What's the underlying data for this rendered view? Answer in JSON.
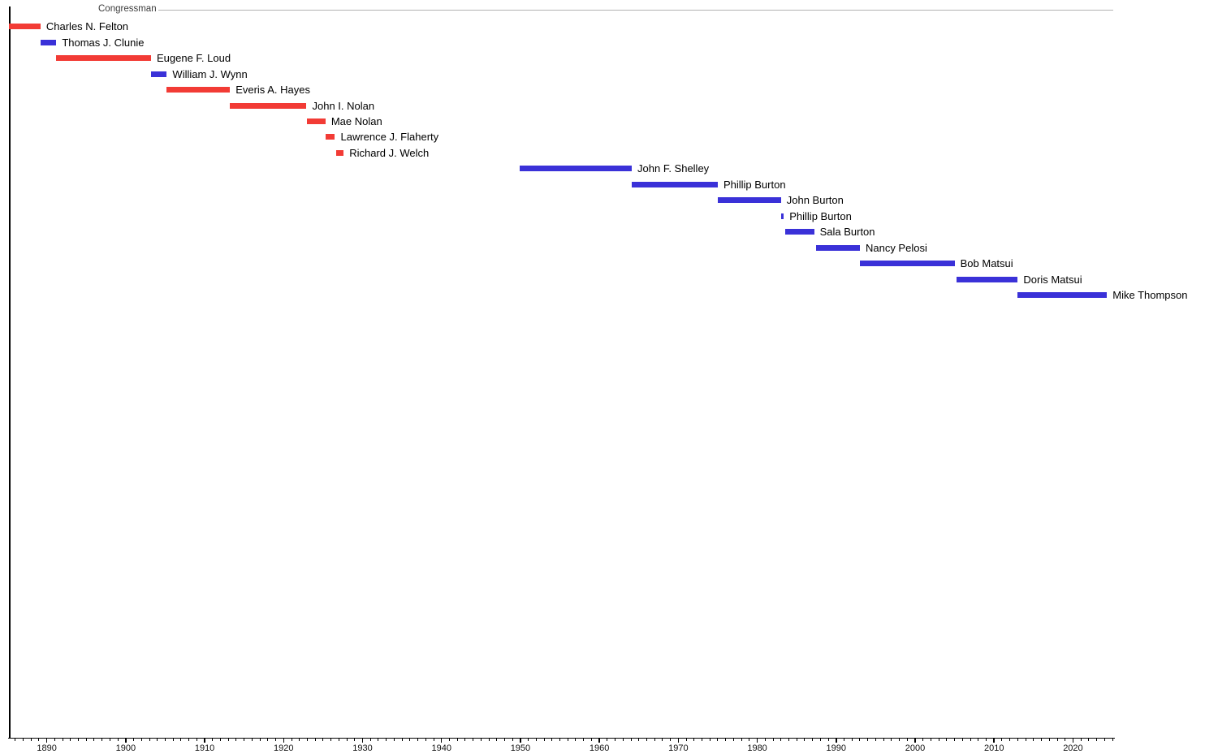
{
  "header": {
    "label": "Congressman"
  },
  "colors": {
    "republican": "#f23b35",
    "democrat": "#3a31d8",
    "axis": "#000000",
    "header_line": "#b3b3b3",
    "header_text": "#3c3c3c",
    "label_text": "#000000"
  },
  "chart_data": {
    "type": "gantt",
    "title": "Congressman",
    "xlabel": "",
    "ylabel": "",
    "grid": false,
    "legend_position": "none",
    "x_axis": {
      "min": 1885.2,
      "max": 2025.2,
      "major_ticks": [
        1890,
        1900,
        1910,
        1920,
        1930,
        1940,
        1950,
        1960,
        1970,
        1980,
        1990,
        2000,
        2010,
        2020
      ],
      "minor_tick_interval_years": 1
    },
    "series": [
      {
        "name": "Charles N. Felton",
        "party": "Republican",
        "start": 1885.2,
        "end": 1889.2
      },
      {
        "name": "Thomas J. Clunie",
        "party": "Democrat",
        "start": 1889.2,
        "end": 1891.2
      },
      {
        "name": "Eugene F. Loud",
        "party": "Republican",
        "start": 1891.2,
        "end": 1903.2
      },
      {
        "name": "William J. Wynn",
        "party": "Democrat",
        "start": 1903.2,
        "end": 1905.2
      },
      {
        "name": "Everis A. Hayes",
        "party": "Republican",
        "start": 1905.2,
        "end": 1913.2
      },
      {
        "name": "John I. Nolan",
        "party": "Republican",
        "start": 1913.2,
        "end": 1922.9
      },
      {
        "name": "Mae Nolan",
        "party": "Republican",
        "start": 1923.0,
        "end": 1925.3
      },
      {
        "name": "Lawrence J. Flaherty",
        "party": "Republican",
        "start": 1925.3,
        "end": 1926.5
      },
      {
        "name": "Richard J. Welch",
        "party": "Republican",
        "start": 1926.7,
        "end": 1927.6
      },
      {
        "name": "John F. Shelley",
        "party": "Democrat",
        "start": 1949.9,
        "end": 1964.1
      },
      {
        "name": "Phillip Burton",
        "party": "Democrat",
        "start": 1964.1,
        "end": 1975.0
      },
      {
        "name": "John Burton",
        "party": "Democrat",
        "start": 1975.0,
        "end": 1983.0
      },
      {
        "name": "Phillip Burton",
        "party": "Democrat",
        "start": 1983.05,
        "end": 1983.3
      },
      {
        "name": "Sala Burton",
        "party": "Democrat",
        "start": 1983.5,
        "end": 1987.2
      },
      {
        "name": "Nancy Pelosi",
        "party": "Democrat",
        "start": 1987.45,
        "end": 1993.0
      },
      {
        "name": "Bob Matsui",
        "party": "Democrat",
        "start": 1993.0,
        "end": 2005.0
      },
      {
        "name": "Doris Matsui",
        "party": "Democrat",
        "start": 2005.2,
        "end": 2013.0
      },
      {
        "name": "Mike Thompson",
        "party": "Democrat",
        "start": 2013.0,
        "end": 2024.3
      }
    ]
  }
}
